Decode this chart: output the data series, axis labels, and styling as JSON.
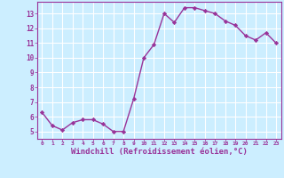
{
  "x": [
    0,
    1,
    2,
    3,
    4,
    5,
    6,
    7,
    8,
    9,
    10,
    11,
    12,
    13,
    14,
    15,
    16,
    17,
    18,
    19,
    20,
    21,
    22,
    23
  ],
  "y": [
    6.3,
    5.4,
    5.1,
    5.6,
    5.8,
    5.8,
    5.5,
    5.0,
    5.0,
    7.2,
    10.0,
    10.9,
    13.0,
    12.4,
    13.4,
    13.4,
    13.2,
    13.0,
    12.5,
    12.2,
    11.5,
    11.2,
    11.7,
    11.0
  ],
  "line_color": "#993399",
  "marker": "D",
  "markersize": 2.2,
  "linewidth": 1.0,
  "xlabel": "Windchill (Refroidissement éolien,°C)",
  "xlabel_fontsize": 6.5,
  "ylabel_ticks": [
    5,
    6,
    7,
    8,
    9,
    10,
    11,
    12,
    13
  ],
  "xtick_labels": [
    "0",
    "1",
    "2",
    "3",
    "4",
    "5",
    "6",
    "7",
    "8",
    "9",
    "10",
    "11",
    "12",
    "13",
    "14",
    "15",
    "16",
    "17",
    "18",
    "19",
    "20",
    "21",
    "22",
    "23"
  ],
  "background_color": "#cceeff",
  "grid_color": "#ffffff",
  "tick_color": "#993399",
  "ylim": [
    4.5,
    13.8
  ],
  "xlim": [
    -0.5,
    23.5
  ]
}
